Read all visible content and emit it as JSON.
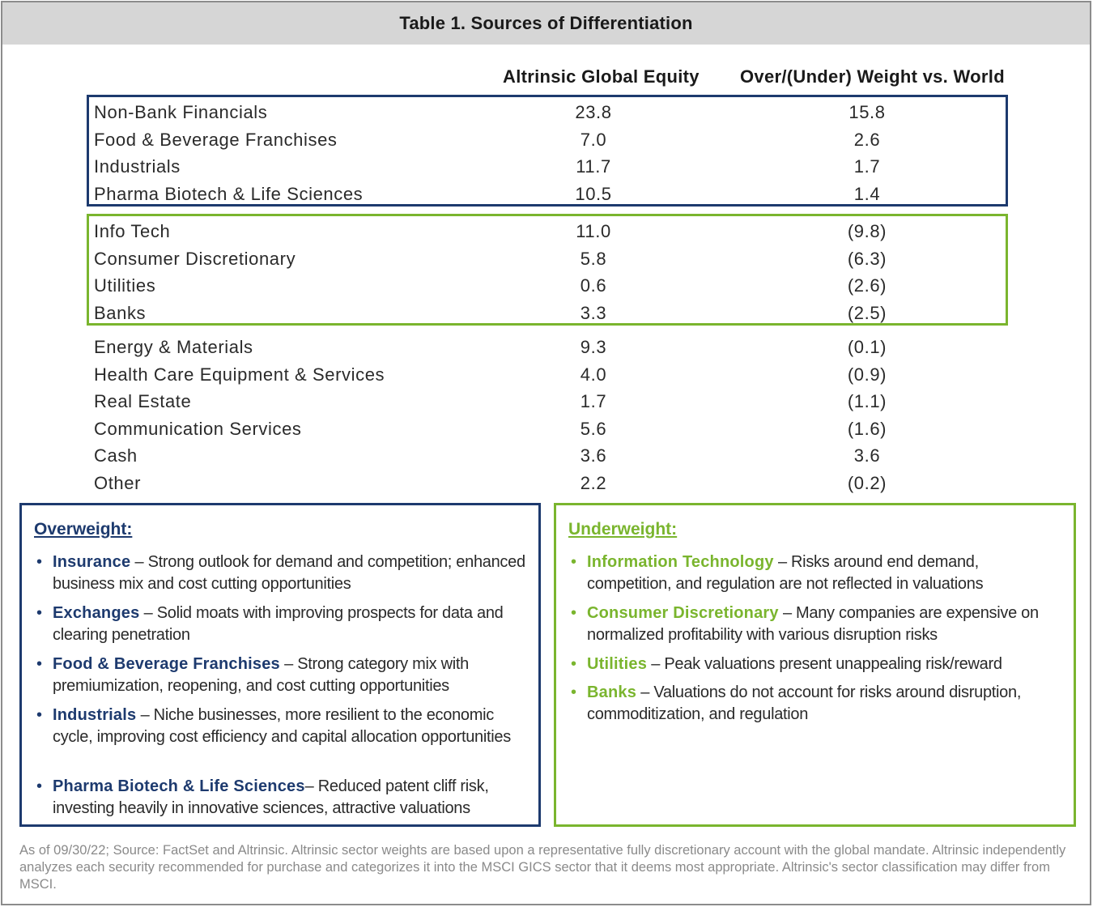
{
  "title": "Table 1. Sources of Differentiation",
  "columns": [
    "Altrinsic Global Equity",
    "Over/(Under) Weight vs. World"
  ],
  "overweight_rows": [
    {
      "sector": "Non-Bank Financials",
      "weight": "23.8",
      "relative": "15.8"
    },
    {
      "sector": "Food & Beverage Franchises",
      "weight": "7.0",
      "relative": "2.6"
    },
    {
      "sector": "Industrials",
      "weight": "11.7",
      "relative": "1.7"
    },
    {
      "sector": "Pharma Biotech & Life Sciences",
      "weight": "10.5",
      "relative": "1.4"
    }
  ],
  "underweight_rows": [
    {
      "sector": "Info Tech",
      "weight": "11.0",
      "relative": "(9.8)"
    },
    {
      "sector": "Consumer Discretionary",
      "weight": "5.8",
      "relative": "(6.3)"
    },
    {
      "sector": "Utilities",
      "weight": "0.6",
      "relative": "(2.6)"
    },
    {
      "sector": "Banks",
      "weight": "3.3",
      "relative": "(2.5)"
    }
  ],
  "other_rows": [
    {
      "sector": "Energy & Materials",
      "weight": "9.3",
      "relative": "(0.1)"
    },
    {
      "sector": "Health Care Equipment & Services",
      "weight": "4.0",
      "relative": "(0.9)"
    },
    {
      "sector": "Real Estate",
      "weight": "1.7",
      "relative": "(1.1)"
    },
    {
      "sector": "Communication Services",
      "weight": "5.6",
      "relative": "(1.6)"
    },
    {
      "sector": "Cash",
      "weight": "3.6",
      "relative": "3.6"
    },
    {
      "sector": "Other",
      "weight": "2.2",
      "relative": "(0.2)"
    }
  ],
  "overweight_panel": {
    "heading": "Overweight:",
    "bullet_glyph": "•",
    "items": [
      {
        "term": "Insurance",
        "text": " – Strong outlook for demand and competition; enhanced business mix and cost cutting opportunities"
      },
      {
        "term": "Exchanges",
        "text": " – Solid moats with improving prospects for data and clearing penetration"
      },
      {
        "term": "Food & Beverage Franchises",
        "text": " – Strong category mix with premiumization, reopening, and cost cutting opportunities"
      },
      {
        "term": "Industrials",
        "text": "  – Niche businesses, more resilient to the economic cycle, improving cost efficiency and capital allocation opportunities"
      },
      {
        "term": "Pharma Biotech & Life Sciences",
        "text": "– Reduced patent cliff risk, investing heavily in innovative sciences, attractive valuations"
      }
    ]
  },
  "underweight_panel": {
    "heading": "Underweight:",
    "bullet_glyph": "•",
    "items": [
      {
        "term": "Information Technology",
        "text": " – Risks around end demand, competition, and regulation are not reflected in valuations"
      },
      {
        "term": "Consumer Discretionary",
        "text": "  – Many companies are expensive on normalized profitability with various disruption risks"
      },
      {
        "term": "Utilities",
        "text": "  –  Peak valuations present unappealing risk/reward"
      },
      {
        "term": "Banks",
        "text": " – Valuations do not account for risks around disruption, commoditization, and regulation"
      }
    ]
  },
  "footnote": "As of 09/30/22; Source: FactSet and Altrinsic.  Altrinsic sector weights are based upon a representative fully discretionary account with the global mandate. Altrinsic independently analyzes each security recommended for purchase and categorizes it into the MSCI GICS sector that it deems most appropriate. Altrinsic's sector classification may differ from MSCI."
}
